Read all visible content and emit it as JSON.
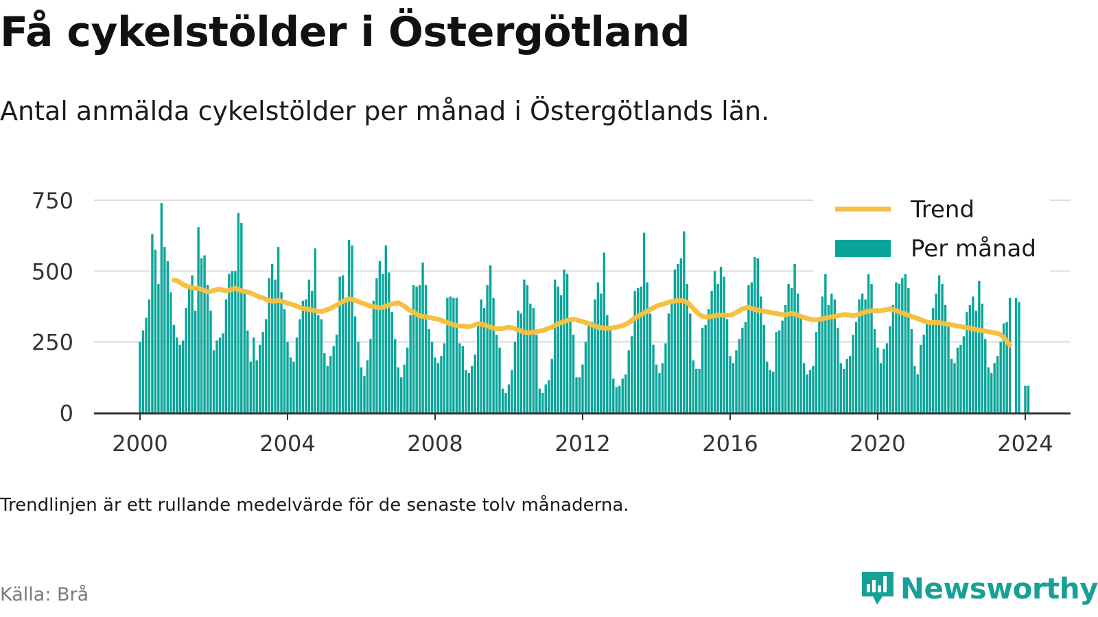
{
  "title": "Få cykelstölder i Östergötland",
  "subtitle": "Antal anmälda cykelstölder per månad i Östergötlands län.",
  "note": "Trendlinjen är ett rullande medelvärde för de senaste tolv månaderna.",
  "source": "Källa: Brå",
  "brand": {
    "name": "Newsworthy",
    "icon": "newsworthy-chart-icon"
  },
  "colors": {
    "bars": "#0aa59a",
    "trend": "#f6c042",
    "grid": "#dddddd",
    "axis": "#333333",
    "brand": "#17a095"
  },
  "chart_data": {
    "type": "bar",
    "title": "",
    "xlabel": "",
    "ylabel": "",
    "ylim": [
      0,
      750
    ],
    "yticks": [
      0,
      250,
      500,
      750
    ],
    "xticks": [
      "2000",
      "2004",
      "2008",
      "2012",
      "2016",
      "2020",
      "2024"
    ],
    "grid": true,
    "legend": {
      "position": "top-right",
      "entries": [
        "Trend",
        "Per månad"
      ]
    },
    "series": [
      {
        "name": "Per månad",
        "kind": "bar",
        "start": "2000-01",
        "values": [
          250,
          290,
          335,
          400,
          630,
          575,
          455,
          740,
          585,
          535,
          425,
          310,
          265,
          240,
          255,
          370,
          440,
          485,
          360,
          655,
          545,
          555,
          450,
          360,
          220,
          255,
          265,
          280,
          400,
          490,
          500,
          500,
          705,
          670,
          420,
          290,
          180,
          265,
          185,
          240,
          285,
          330,
          475,
          525,
          470,
          585,
          425,
          365,
          250,
          195,
          180,
          265,
          330,
          395,
          400,
          470,
          430,
          580,
          345,
          330,
          210,
          165,
          200,
          235,
          275,
          480,
          485,
          395,
          610,
          590,
          340,
          250,
          160,
          130,
          185,
          260,
          395,
          475,
          535,
          490,
          590,
          495,
          355,
          260,
          160,
          125,
          170,
          230,
          345,
          450,
          445,
          450,
          530,
          450,
          295,
          250,
          195,
          175,
          200,
          245,
          405,
          410,
          405,
          405,
          245,
          235,
          150,
          140,
          165,
          205,
          310,
          400,
          370,
          450,
          520,
          405,
          275,
          230,
          85,
          70,
          100,
          150,
          250,
          360,
          350,
          470,
          450,
          385,
          370,
          275,
          85,
          70,
          100,
          115,
          190,
          470,
          445,
          415,
          505,
          490,
          325,
          275,
          125,
          125,
          170,
          250,
          305,
          320,
          400,
          460,
          420,
          565,
          345,
          295,
          120,
          90,
          95,
          120,
          135,
          220,
          270,
          430,
          440,
          445,
          635,
          460,
          350,
          240,
          170,
          140,
          175,
          245,
          350,
          400,
          505,
          525,
          545,
          640,
          455,
          350,
          185,
          155,
          155,
          300,
          310,
          365,
          430,
          500,
          455,
          515,
          480,
          330,
          200,
          175,
          220,
          260,
          300,
          320,
          450,
          460,
          550,
          545,
          410,
          310,
          180,
          150,
          145,
          285,
          290,
          325,
          380,
          455,
          440,
          525,
          420,
          340,
          175,
          135,
          150,
          165,
          285,
          330,
          410,
          495,
          380,
          420,
          400,
          300,
          175,
          155,
          190,
          200,
          275,
          320,
          400,
          420,
          400,
          530,
          455,
          295,
          230,
          175,
          225,
          245,
          305,
          380,
          460,
          455,
          475,
          540,
          440,
          295,
          165,
          135,
          240,
          275,
          315,
          325,
          370,
          420,
          485,
          455,
          380,
          310,
          190,
          175,
          230,
          240,
          270,
          355,
          380,
          410,
          360,
          465,
          385,
          260,
          160,
          140,
          175,
          200,
          250,
          315,
          320,
          405,
          0,
          405,
          390,
          0,
          95,
          95
        ]
      },
      {
        "name": "Trend",
        "kind": "line",
        "start": "2000-12",
        "values": [
          468,
          466,
          460,
          452,
          448,
          444,
          441,
          440,
          438,
          436,
          430,
          427,
          428,
          432,
          434,
          436,
          432,
          430,
          432,
          436,
          440,
          434,
          430,
          428,
          426,
          422,
          418,
          412,
          408,
          405,
          400,
          396,
          394,
          394,
          396,
          394,
          390,
          386,
          384,
          380,
          376,
          372,
          368,
          366,
          364,
          362,
          360,
          358,
          356,
          360,
          364,
          368,
          374,
          380,
          386,
          392,
          398,
          402,
          400,
          396,
          392,
          388,
          384,
          380,
          376,
          374,
          372,
          370,
          372,
          376,
          380,
          384,
          386,
          388,
          382,
          376,
          368,
          360,
          354,
          348,
          342,
          340,
          338,
          336,
          334,
          332,
          330,
          326,
          322,
          318,
          314,
          310,
          308,
          306,
          306,
          304,
          304,
          306,
          310,
          314,
          312,
          310,
          306,
          302,
          298,
          296,
          296,
          297,
          300,
          302,
          300,
          296,
          292,
          288,
          284,
          282,
          282,
          284,
          286,
          288,
          290,
          294,
          298,
          302,
          308,
          314,
          318,
          322,
          326,
          328,
          330,
          328,
          324,
          322,
          318,
          314,
          310,
          306,
          302,
          300,
          298,
          298,
          298,
          300,
          302,
          304,
          308,
          312,
          318,
          326,
          334,
          340,
          346,
          352,
          358,
          364,
          370,
          376,
          380,
          382,
          386,
          390,
          392,
          394,
          396,
          396,
          394,
          390,
          380,
          368,
          356,
          346,
          340,
          338,
          338,
          340,
          342,
          344,
          344,
          344,
          344,
          344,
          348,
          354,
          360,
          366,
          370,
          372,
          368,
          364,
          362,
          360,
          358,
          356,
          354,
          352,
          350,
          348,
          346,
          346,
          348,
          350,
          348,
          344,
          340,
          336,
          333,
          330,
          328,
          328,
          330,
          332,
          334,
          336,
          338,
          340,
          342,
          344,
          346,
          346,
          344,
          342,
          344,
          348,
          352,
          356,
          358,
          360,
          360,
          360,
          360,
          362,
          364,
          366,
          364,
          360,
          356,
          352,
          348,
          344,
          340,
          336,
          332,
          328,
          324,
          320,
          318,
          318,
          318,
          318,
          316,
          314,
          312,
          310,
          308,
          306,
          304,
          302,
          300,
          298,
          296,
          294,
          292,
          290,
          288,
          286,
          284,
          282,
          280,
          275,
          266,
          252,
          238
        ]
      }
    ]
  }
}
